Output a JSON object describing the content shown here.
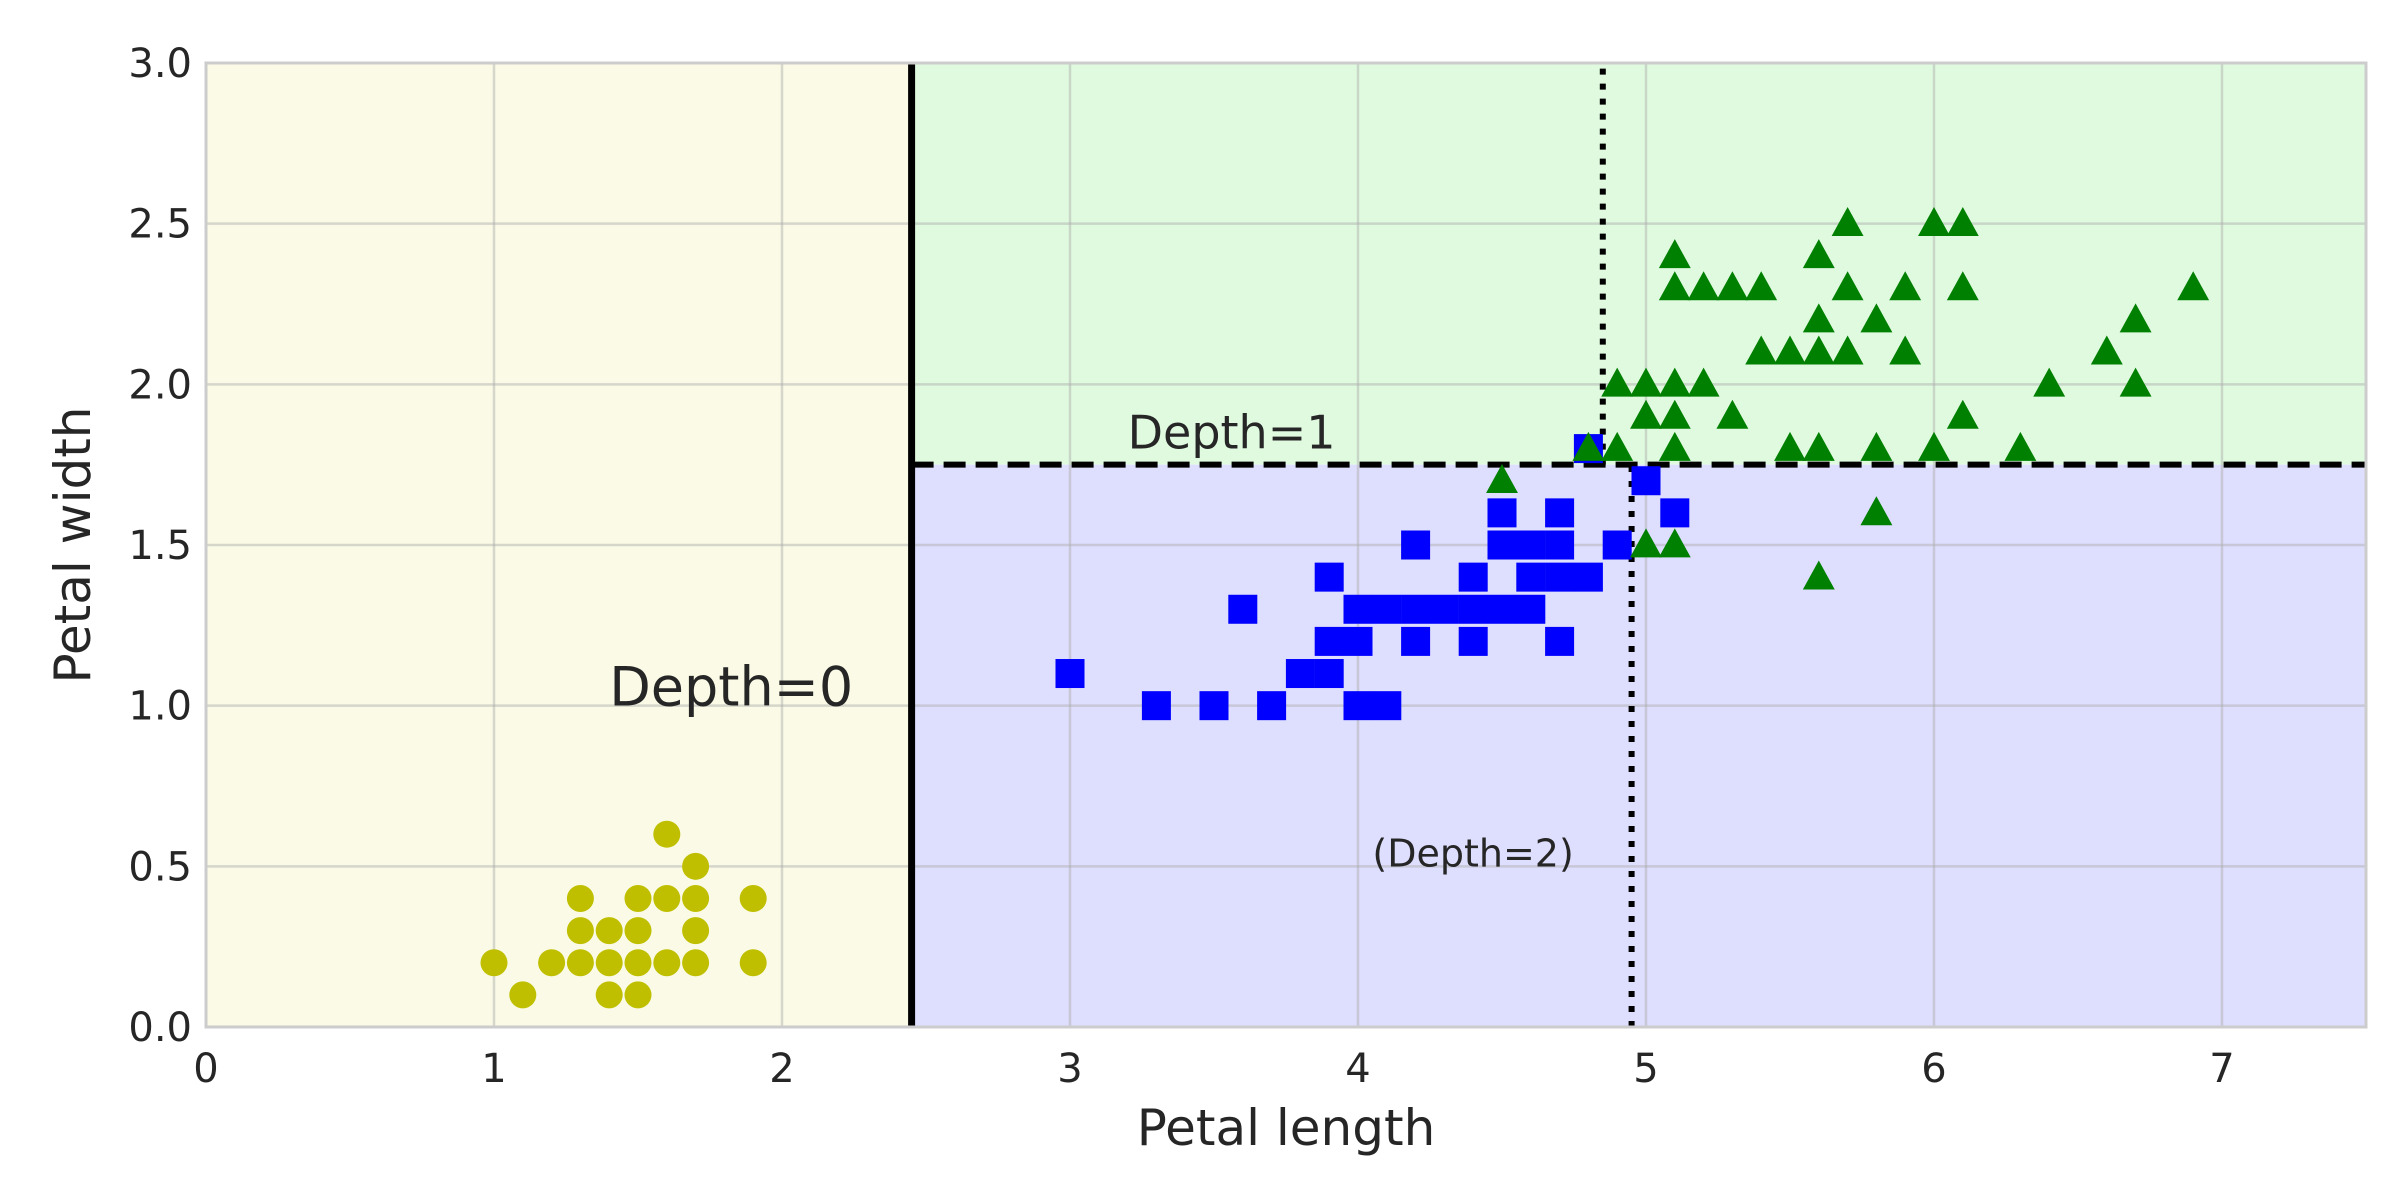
{
  "chart_data": {
    "type": "scatter",
    "title": "",
    "xlabel": "Petal length",
    "ylabel": "Petal width",
    "xlim": [
      0,
      7.5
    ],
    "ylim": [
      0,
      3.0
    ],
    "grid": true,
    "xticks": [
      0,
      1,
      2,
      3,
      4,
      5,
      6,
      7
    ],
    "xtick_labels": [
      "0",
      "1",
      "2",
      "3",
      "4",
      "5",
      "6",
      "7"
    ],
    "yticks": [
      0.0,
      0.5,
      1.0,
      1.5,
      2.0,
      2.5,
      3.0
    ],
    "ytick_labels": [
      "0.0",
      "0.5",
      "1.0",
      "1.5",
      "2.0",
      "2.5",
      "3.0"
    ],
    "regions": [
      {
        "x": [
          0,
          2.45
        ],
        "y": [
          0,
          3.0
        ],
        "color": "#fafae6"
      },
      {
        "x": [
          2.45,
          7.5
        ],
        "y": [
          1.75,
          3.0
        ],
        "color": "#e0fae0"
      },
      {
        "x": [
          2.45,
          7.5
        ],
        "y": [
          0,
          1.75
        ],
        "color": "#dedefe"
      }
    ],
    "boundaries": [
      {
        "orientation": "vertical",
        "x": 2.45,
        "y": [
          0,
          3.0
        ],
        "style": "solid"
      },
      {
        "orientation": "horizontal",
        "y": 1.75,
        "x": [
          2.45,
          7.5
        ],
        "style": "dashed"
      },
      {
        "orientation": "vertical",
        "x": 4.95,
        "y": [
          0,
          1.75
        ],
        "style": "dotted"
      },
      {
        "orientation": "vertical",
        "x": 4.85,
        "y": [
          1.75,
          3.0
        ],
        "style": "dotted"
      }
    ],
    "annotations": [
      {
        "text": "Depth=0",
        "x": 1.4,
        "y": 1.0,
        "size": "large"
      },
      {
        "text": "Depth=1",
        "x": 3.2,
        "y": 1.8,
        "size": "medium"
      },
      {
        "text": "(Depth=2)",
        "x": 4.05,
        "y": 0.5,
        "size": "small"
      }
    ],
    "series": [
      {
        "marker": "circle",
        "color": "#bfbf00",
        "points": [
          [
            1.0,
            0.2
          ],
          [
            1.1,
            0.1
          ],
          [
            1.2,
            0.2
          ],
          [
            1.3,
            0.2
          ],
          [
            1.3,
            0.3
          ],
          [
            1.3,
            0.4
          ],
          [
            1.4,
            0.1
          ],
          [
            1.4,
            0.2
          ],
          [
            1.4,
            0.3
          ],
          [
            1.5,
            0.1
          ],
          [
            1.5,
            0.2
          ],
          [
            1.5,
            0.3
          ],
          [
            1.5,
            0.4
          ],
          [
            1.6,
            0.2
          ],
          [
            1.6,
            0.4
          ],
          [
            1.6,
            0.6
          ],
          [
            1.7,
            0.2
          ],
          [
            1.7,
            0.3
          ],
          [
            1.7,
            0.4
          ],
          [
            1.7,
            0.5
          ],
          [
            1.9,
            0.2
          ],
          [
            1.9,
            0.4
          ]
        ]
      },
      {
        "marker": "square",
        "color": "#0000ff",
        "points": [
          [
            3.0,
            1.1
          ],
          [
            3.3,
            1.0
          ],
          [
            3.5,
            1.0
          ],
          [
            3.6,
            1.3
          ],
          [
            3.7,
            1.0
          ],
          [
            3.8,
            1.1
          ],
          [
            3.9,
            1.1
          ],
          [
            3.9,
            1.2
          ],
          [
            3.9,
            1.4
          ],
          [
            4.0,
            1.0
          ],
          [
            4.0,
            1.2
          ],
          [
            4.0,
            1.3
          ],
          [
            4.1,
            1.0
          ],
          [
            4.1,
            1.3
          ],
          [
            4.2,
            1.2
          ],
          [
            4.2,
            1.3
          ],
          [
            4.2,
            1.5
          ],
          [
            4.3,
            1.3
          ],
          [
            4.4,
            1.2
          ],
          [
            4.4,
            1.3
          ],
          [
            4.4,
            1.4
          ],
          [
            4.5,
            1.3
          ],
          [
            4.5,
            1.5
          ],
          [
            4.5,
            1.6
          ],
          [
            4.6,
            1.3
          ],
          [
            4.6,
            1.4
          ],
          [
            4.6,
            1.5
          ],
          [
            4.7,
            1.2
          ],
          [
            4.7,
            1.4
          ],
          [
            4.7,
            1.5
          ],
          [
            4.7,
            1.6
          ],
          [
            4.8,
            1.4
          ],
          [
            4.8,
            1.8
          ],
          [
            4.9,
            1.5
          ],
          [
            5.0,
            1.7
          ],
          [
            5.1,
            1.6
          ]
        ]
      },
      {
        "marker": "triangle",
        "color": "#008000",
        "points": [
          [
            4.5,
            1.7
          ],
          [
            4.8,
            1.8
          ],
          [
            4.9,
            1.8
          ],
          [
            4.9,
            2.0
          ],
          [
            5.0,
            1.5
          ],
          [
            5.0,
            1.9
          ],
          [
            5.0,
            2.0
          ],
          [
            5.1,
            1.5
          ],
          [
            5.1,
            1.8
          ],
          [
            5.1,
            1.9
          ],
          [
            5.1,
            2.0
          ],
          [
            5.1,
            2.3
          ],
          [
            5.1,
            2.4
          ],
          [
            5.2,
            2.0
          ],
          [
            5.2,
            2.3
          ],
          [
            5.3,
            1.9
          ],
          [
            5.3,
            2.3
          ],
          [
            5.4,
            2.1
          ],
          [
            5.4,
            2.3
          ],
          [
            5.5,
            1.8
          ],
          [
            5.5,
            2.1
          ],
          [
            5.6,
            1.4
          ],
          [
            5.6,
            1.8
          ],
          [
            5.6,
            2.1
          ],
          [
            5.6,
            2.2
          ],
          [
            5.6,
            2.4
          ],
          [
            5.7,
            2.1
          ],
          [
            5.7,
            2.3
          ],
          [
            5.7,
            2.5
          ],
          [
            5.8,
            1.6
          ],
          [
            5.8,
            1.8
          ],
          [
            5.8,
            2.2
          ],
          [
            5.9,
            2.1
          ],
          [
            5.9,
            2.3
          ],
          [
            6.0,
            1.8
          ],
          [
            6.0,
            2.5
          ],
          [
            6.1,
            1.9
          ],
          [
            6.1,
            2.3
          ],
          [
            6.1,
            2.5
          ],
          [
            6.3,
            1.8
          ],
          [
            6.4,
            2.0
          ],
          [
            6.6,
            2.1
          ],
          [
            6.7,
            2.0
          ],
          [
            6.7,
            2.2
          ],
          [
            6.9,
            2.3
          ]
        ]
      }
    ]
  }
}
